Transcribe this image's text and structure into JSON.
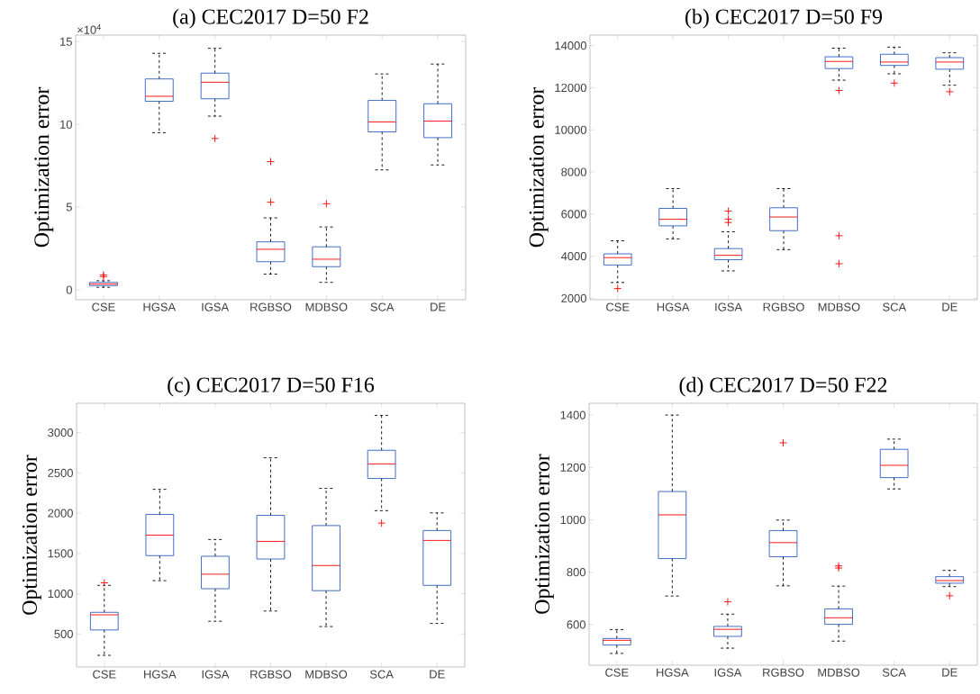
{
  "chart_data": [
    {
      "type": "box",
      "title": "(a)  CEC2017 D=50 F2",
      "ylabel": "Optimization error",
      "annotations": [
        "×10$^{4}$"
      ],
      "categories": [
        "CSE",
        "HGSA",
        "IGSA",
        "RGBSO",
        "MDBSO",
        "SCA",
        "DE"
      ],
      "ylim": [
        -0.6,
        15.4
      ],
      "yticks": [
        0,
        5,
        10,
        15
      ],
      "series": [
        {
          "color": "#2e5fbf",
          "boxes": [
            {
              "low": 0.15,
              "q1": 0.25,
              "median": 0.35,
              "q3": 0.45,
              "high": 0.55,
              "outliers": [
                0.8,
                0.9
              ]
            },
            {
              "low": 9.5,
              "q1": 11.4,
              "median": 11.7,
              "q3": 12.75,
              "high": 14.3
            },
            {
              "low": 10.5,
              "q1": 11.55,
              "median": 12.55,
              "q3": 13.1,
              "high": 14.6,
              "outliers": [
                9.15
              ]
            },
            {
              "low": 0.95,
              "q1": 1.7,
              "median": 2.45,
              "q3": 2.9,
              "high": 4.35,
              "outliers": [
                5.3,
                7.75
              ]
            },
            {
              "low": 0.45,
              "q1": 1.4,
              "median": 1.85,
              "q3": 2.6,
              "high": 3.8,
              "outliers": [
                5.2
              ]
            },
            {
              "low": 7.25,
              "q1": 9.55,
              "median": 10.15,
              "q3": 11.45,
              "high": 13.05
            },
            {
              "low": 7.55,
              "q1": 9.2,
              "median": 10.2,
              "q3": 11.25,
              "high": 13.65
            }
          ]
        }
      ]
    },
    {
      "type": "box",
      "title": "(b)  CEC2017 D=50 F9",
      "ylabel": "Optimization error",
      "categories": [
        "CSE",
        "HGSA",
        "IGSA",
        "RGBSO",
        "MDBSO",
        "SCA",
        "DE"
      ],
      "ylim": [
        1930,
        14500
      ],
      "yticks": [
        2000,
        4000,
        6000,
        8000,
        10000,
        12000,
        14000
      ],
      "series": [
        {
          "color": "#2e5fbf",
          "boxes": [
            {
              "low": 2750,
              "q1": 3580,
              "median": 3930,
              "q3": 4110,
              "high": 4730,
              "outliers": [
                2460
              ]
            },
            {
              "low": 4820,
              "q1": 5440,
              "median": 5750,
              "q3": 6270,
              "high": 7210
            },
            {
              "low": 3300,
              "q1": 3830,
              "median": 4040,
              "q3": 4360,
              "high": 5160,
              "outliers": [
                5600,
                5760,
                6140
              ]
            },
            {
              "low": 4310,
              "q1": 5210,
              "median": 5860,
              "q3": 6300,
              "high": 7210
            },
            {
              "low": 12360,
              "q1": 12910,
              "median": 13250,
              "q3": 13470,
              "high": 13880,
              "outliers": [
                3640,
                4970,
                11870
              ]
            },
            {
              "low": 12660,
              "q1": 13060,
              "median": 13220,
              "q3": 13590,
              "high": 13930,
              "outliers": [
                12220
              ]
            },
            {
              "low": 12120,
              "q1": 12880,
              "median": 13220,
              "q3": 13430,
              "high": 13660,
              "outliers": [
                11810
              ]
            }
          ]
        }
      ]
    },
    {
      "type": "box",
      "title": "(c)  CEC2017 D=50 F16",
      "ylabel": "Optimization error",
      "categories": [
        "CSE",
        "HGSA",
        "IGSA",
        "RGBSO",
        "MDBSO",
        "SCA",
        "DE"
      ],
      "ylim": [
        90,
        3365
      ],
      "yticks": [
        500,
        1000,
        1500,
        2000,
        2500,
        3000
      ],
      "series": [
        {
          "color": "#2e5fbf",
          "boxes": [
            {
              "low": 235,
              "q1": 550,
              "median": 738,
              "q3": 769,
              "high": 1104,
              "outliers": [
                1135
              ]
            },
            {
              "low": 1162,
              "q1": 1473,
              "median": 1727,
              "q3": 1985,
              "high": 2296
            },
            {
              "low": 658,
              "q1": 1062,
              "median": 1242,
              "q3": 1465,
              "high": 1673
            },
            {
              "low": 785,
              "q1": 1431,
              "median": 1650,
              "q3": 1973,
              "high": 2688
            },
            {
              "low": 592,
              "q1": 1038,
              "median": 1350,
              "q3": 1846,
              "high": 2308
            },
            {
              "low": 2031,
              "q1": 2431,
              "median": 2612,
              "q3": 2781,
              "high": 3215,
              "outliers": [
                1877
              ]
            },
            {
              "low": 631,
              "q1": 1104,
              "median": 1662,
              "q3": 1785,
              "high": 2004
            }
          ]
        }
      ]
    },
    {
      "type": "box",
      "title": "(d)  CEC2017 D=50 F22",
      "ylabel": "Optimization error",
      "categories": [
        "CSE",
        "HGSA",
        "IGSA",
        "RGBSO",
        "MDBSO",
        "SCA",
        "DE"
      ],
      "ylim": [
        445,
        1445
      ],
      "yticks": [
        600,
        800,
        1000,
        1200,
        1400
      ],
      "series": [
        {
          "color": "#2e5fbf",
          "boxes": [
            {
              "low": 490,
              "q1": 522,
              "median": 540,
              "q3": 547,
              "high": 581
            },
            {
              "low": 709,
              "q1": 852,
              "median": 1019,
              "q3": 1108,
              "high": 1400
            },
            {
              "low": 510,
              "q1": 555,
              "median": 582,
              "q3": 593,
              "high": 640,
              "outliers": [
                687
              ]
            },
            {
              "low": 748,
              "q1": 859,
              "median": 913,
              "q3": 959,
              "high": 999,
              "outliers": [
                1294
              ]
            },
            {
              "low": 537,
              "q1": 601,
              "median": 626,
              "q3": 660,
              "high": 747,
              "outliers": [
                816,
                824
              ]
            },
            {
              "low": 1118,
              "q1": 1161,
              "median": 1208,
              "q3": 1269,
              "high": 1308
            },
            {
              "low": 745,
              "q1": 758,
              "median": 768,
              "q3": 783,
              "high": 807,
              "outliers": [
                710
              ]
            }
          ]
        }
      ]
    }
  ]
}
